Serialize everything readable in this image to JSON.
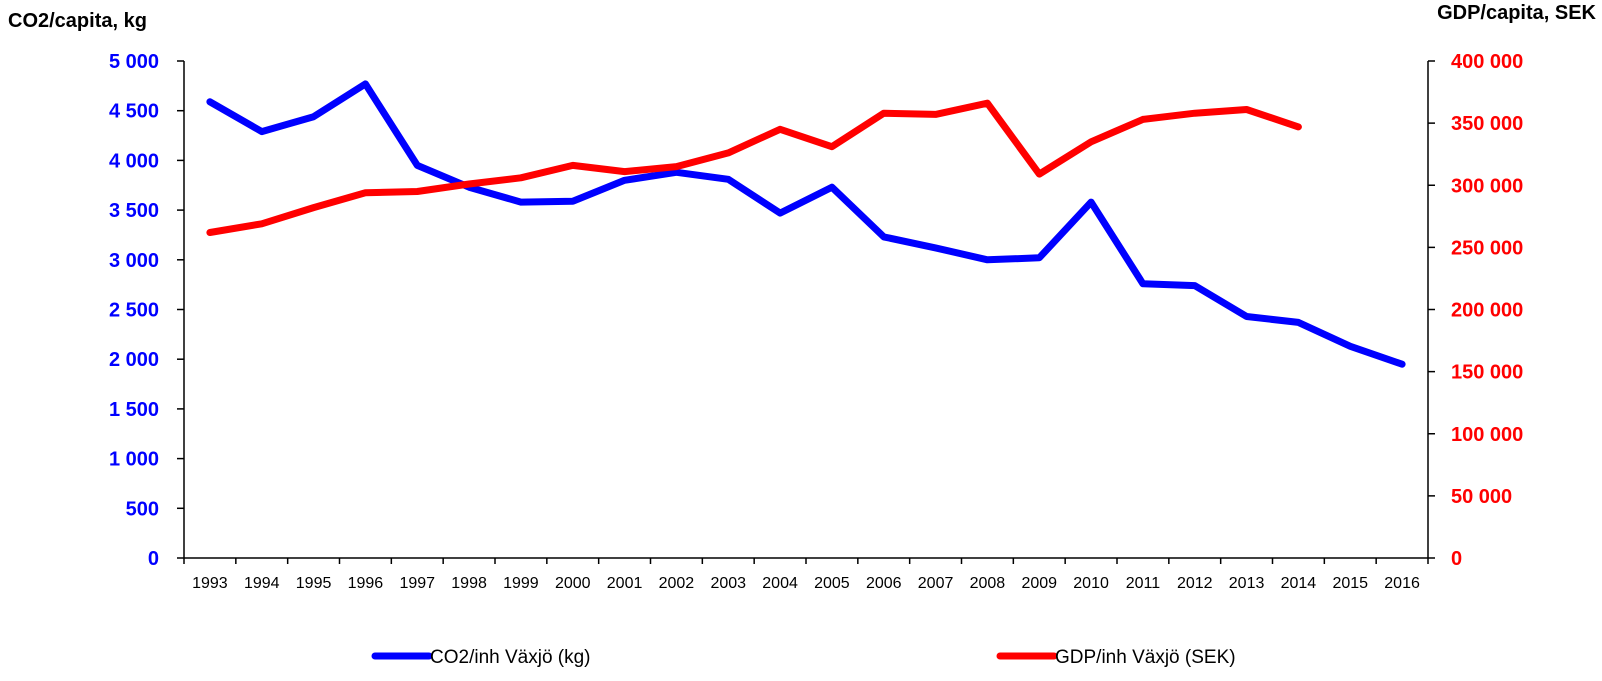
{
  "chart_data": {
    "type": "line",
    "y_left_label": "CO2/capita, kg",
    "y_right_label": "GDP/capita, SEK",
    "ylim_left": [
      0,
      5000
    ],
    "ylim_right": [
      0,
      400000
    ],
    "y_left_ticks": [
      "0",
      "500",
      "1 000",
      "1 500",
      "2 000",
      "2 500",
      "3 000",
      "3 500",
      "4 000",
      "4 500",
      "5 000"
    ],
    "y_right_ticks": [
      "0",
      "50 000",
      "100 000",
      "150 000",
      "200 000",
      "250 000",
      "300 000",
      "350 000",
      "400 000"
    ],
    "x": [
      "1993",
      "1994",
      "1995",
      "1996",
      "1997",
      "1998",
      "1999",
      "2000",
      "2001",
      "2002",
      "2003",
      "2004",
      "2005",
      "2006",
      "2007",
      "2008",
      "2009",
      "2010",
      "2011",
      "2012",
      "2013",
      "2014",
      "2015",
      "2016"
    ],
    "grid": false,
    "legend_position": "bottom",
    "series": [
      {
        "name": "CO2/inh Växjö (kg)",
        "axis": "left",
        "color": "#0000ff",
        "values": [
          4590,
          4290,
          4440,
          4770,
          3950,
          3730,
          3580,
          3590,
          3800,
          3880,
          3810,
          3470,
          3730,
          3230,
          3120,
          3000,
          3020,
          3580,
          2760,
          2740,
          2430,
          2370,
          2130,
          1950
        ]
      },
      {
        "name": "GDP/inh Växjö (SEK)",
        "axis": "right",
        "color": "#ff0000",
        "values": [
          262000,
          269000,
          282000,
          294000,
          295000,
          301000,
          306000,
          316000,
          311000,
          315000,
          326000,
          345000,
          331000,
          358000,
          357000,
          366000,
          309000,
          335000,
          353000,
          358000,
          361000,
          347000,
          null,
          null
        ]
      }
    ]
  }
}
